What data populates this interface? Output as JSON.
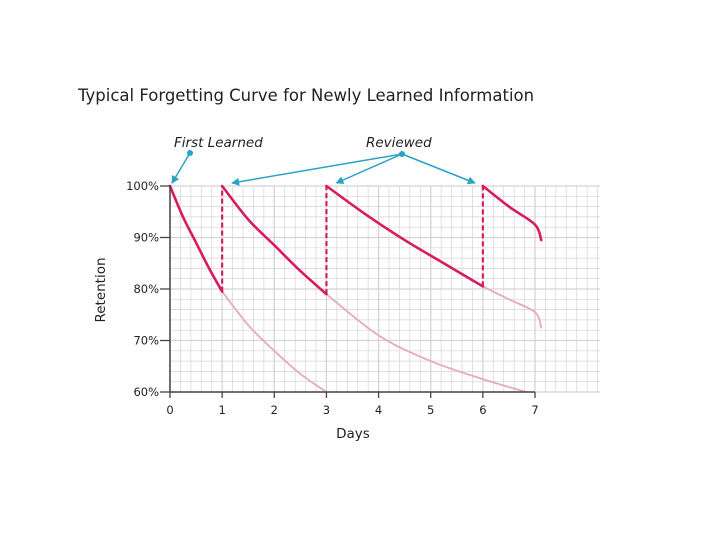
{
  "chart_data": {
    "type": "line",
    "title": "Typical Forgetting Curve for Newly Learned Information",
    "xlabel": "Days",
    "ylabel": "Retention",
    "xlim": [
      0,
      7
    ],
    "ylim": [
      60,
      100
    ],
    "x_ticks": [
      "0",
      "1",
      "2",
      "3",
      "4",
      "5",
      "6",
      "7"
    ],
    "y_ticks": [
      {
        "value": 60,
        "label": "60%"
      },
      {
        "value": 70,
        "label": "70%"
      },
      {
        "value": 80,
        "label": "80%"
      },
      {
        "value": 90,
        "label": "90%"
      },
      {
        "value": 100,
        "label": "100%"
      }
    ],
    "grid": true,
    "colors": {
      "primary": "#d81b60",
      "faded": "#e6aabe",
      "annotation": "#29a3c4",
      "grid": "#d4d4d4",
      "axis": "#444444"
    },
    "series": [
      {
        "role": "retention",
        "points": [
          [
            0,
            100
          ],
          [
            0.25,
            94
          ],
          [
            0.5,
            89
          ],
          [
            0.75,
            84
          ],
          [
            1,
            79.5
          ]
        ]
      },
      {
        "role": "retention",
        "points": [
          [
            1,
            100
          ],
          [
            1.5,
            93.5
          ],
          [
            2,
            88.5
          ],
          [
            2.5,
            83.5
          ],
          [
            3,
            79
          ]
        ]
      },
      {
        "role": "retention",
        "points": [
          [
            3,
            100
          ],
          [
            3.75,
            94.5
          ],
          [
            4.5,
            89.5
          ],
          [
            5.25,
            85
          ],
          [
            6,
            80.5
          ]
        ]
      },
      {
        "role": "retention",
        "points": [
          [
            6,
            100
          ],
          [
            6.5,
            96
          ],
          [
            7,
            92.5
          ],
          [
            7.12,
            89.5
          ]
        ]
      },
      {
        "role": "without-review",
        "points": [
          [
            1,
            79.5
          ],
          [
            1.5,
            73
          ],
          [
            2,
            68
          ],
          [
            2.5,
            63.5
          ],
          [
            3,
            60
          ]
        ]
      },
      {
        "role": "without-review",
        "points": [
          [
            3,
            79
          ],
          [
            4,
            71
          ],
          [
            5,
            66
          ],
          [
            6,
            62.5
          ],
          [
            7,
            59.5
          ]
        ]
      },
      {
        "role": "without-review",
        "points": [
          [
            6,
            80.5
          ],
          [
            6.5,
            78
          ],
          [
            7,
            75.5
          ],
          [
            7.12,
            72.5
          ]
        ]
      }
    ],
    "review_jumps": [
      {
        "x": 1,
        "from": 79.5,
        "to": 100
      },
      {
        "x": 3,
        "from": 79,
        "to": 100
      },
      {
        "x": 6,
        "from": 80.5,
        "to": 100
      }
    ],
    "annotations": [
      {
        "text": "First Learned",
        "targets": [
          {
            "x": 0,
            "y": 100
          }
        ]
      },
      {
        "text": "Reviewed",
        "targets": [
          {
            "x": 1,
            "y": 100
          },
          {
            "x": 3,
            "y": 100
          },
          {
            "x": 6,
            "y": 100
          }
        ]
      }
    ]
  }
}
